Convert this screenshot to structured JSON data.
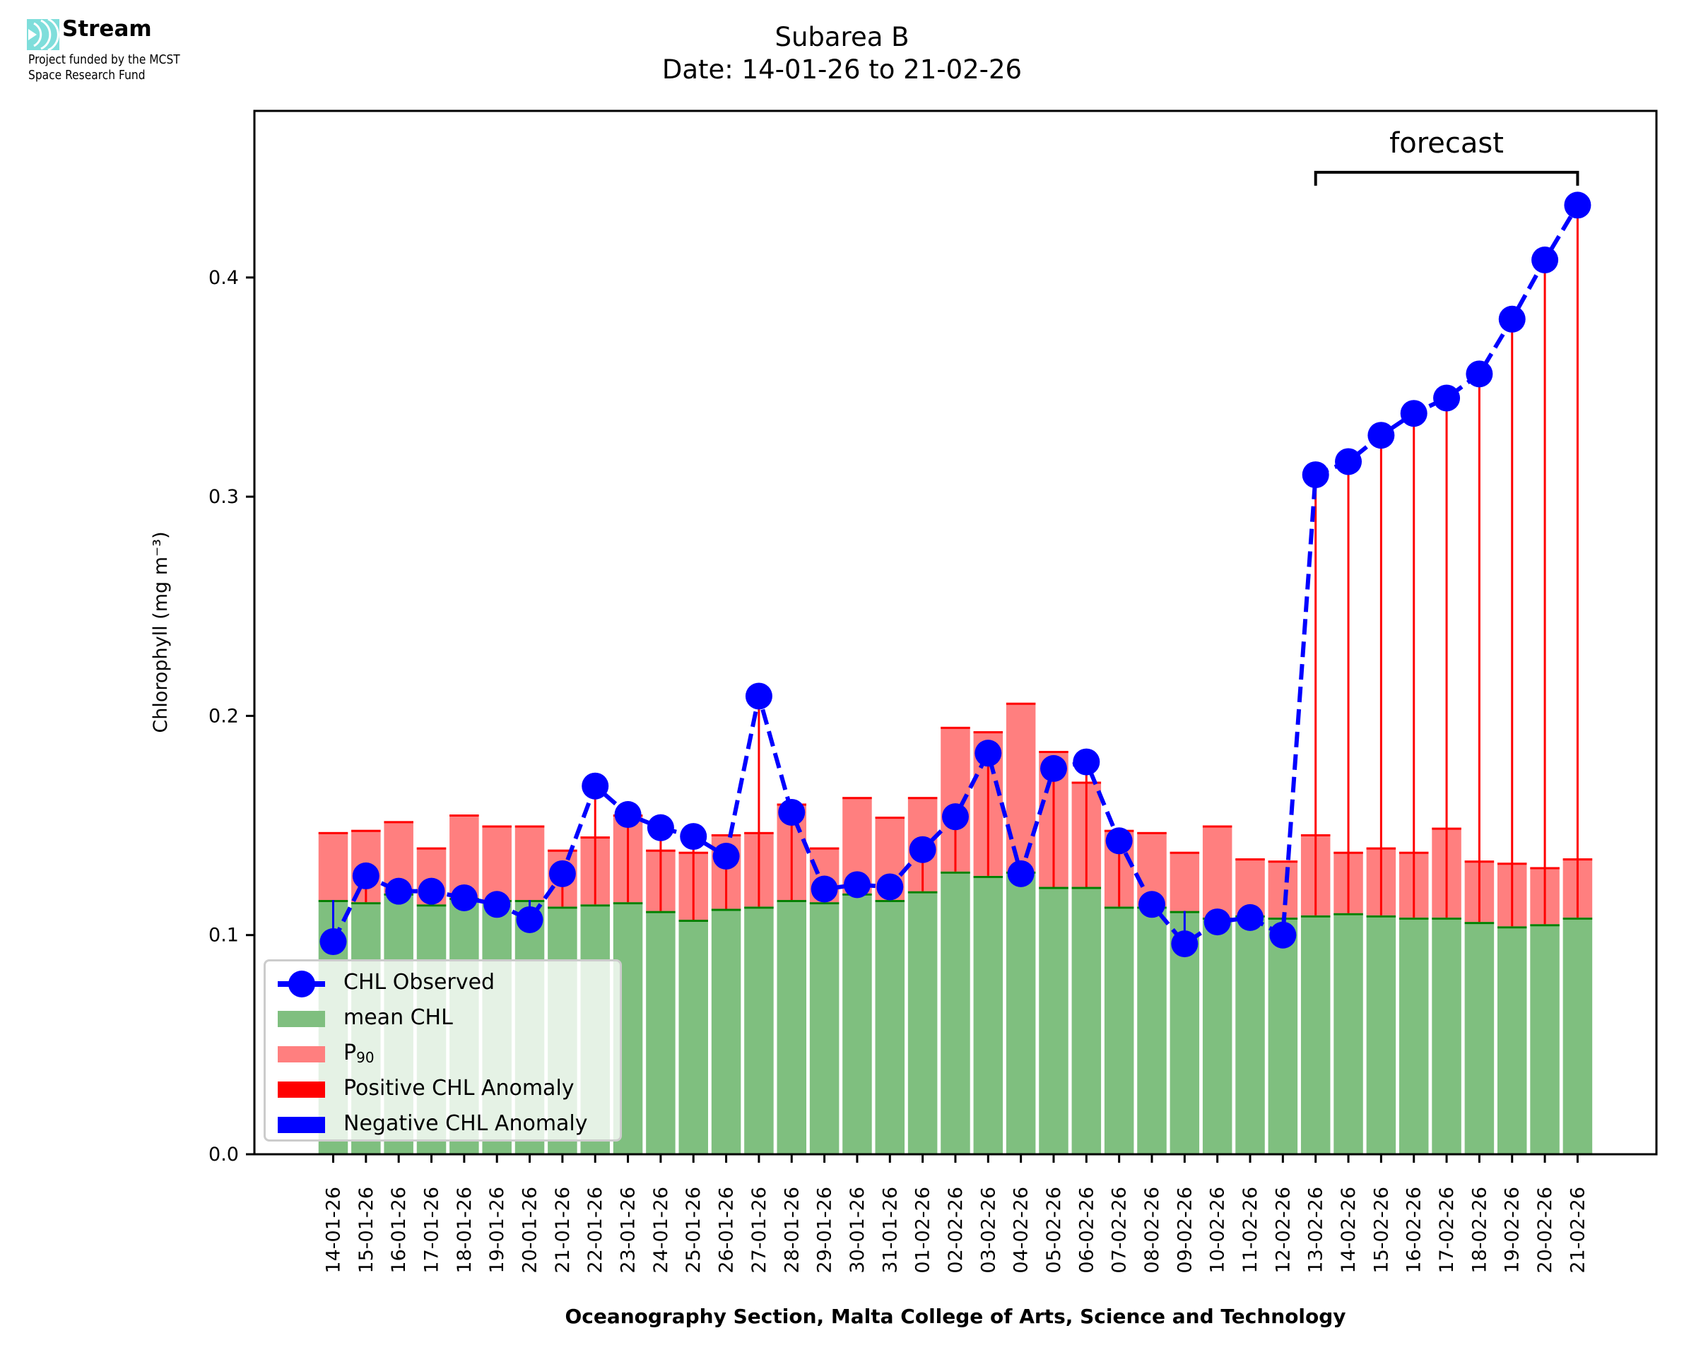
{
  "header": {
    "logo_icon": "stream-waves-icon",
    "logo_name": "Stream",
    "logo_subtitle_line1": "Project funded by the MCST",
    "logo_subtitle_line2": "Space Research Fund",
    "logo_color": "#7fdedb"
  },
  "chart_data": {
    "type": "bar",
    "title_line1": "Subarea B",
    "title_line2": "Date: 14-01-26 to 21-02-26",
    "xlabel": "Oceanography Section, Malta College of Arts, Science and Technology",
    "ylabel": "Chlorophyll (mg m⁻³)",
    "ylim": [
      0,
      0.476
    ],
    "yticks": [
      0.0,
      0.1,
      0.2,
      0.3,
      0.4
    ],
    "ytick_labels": [
      "0.0",
      "0.1",
      "0.2",
      "0.3",
      "0.4"
    ],
    "grid": false,
    "legend_placement": "lower-left",
    "categories": [
      "14-01-26",
      "15-01-26",
      "16-01-26",
      "17-01-26",
      "18-01-26",
      "19-01-26",
      "20-01-26",
      "21-01-26",
      "22-01-26",
      "23-01-26",
      "24-01-26",
      "25-01-26",
      "26-01-26",
      "27-01-26",
      "28-01-26",
      "29-01-26",
      "30-01-26",
      "31-01-26",
      "01-02-26",
      "02-02-26",
      "03-02-26",
      "04-02-26",
      "05-02-26",
      "06-02-26",
      "07-02-26",
      "08-02-26",
      "09-02-26",
      "10-02-26",
      "11-02-26",
      "12-02-26",
      "13-02-26",
      "14-02-26",
      "15-02-26",
      "16-02-26",
      "17-02-26",
      "18-02-26",
      "19-02-26",
      "20-02-26",
      "21-02-26"
    ],
    "series": [
      {
        "name": "mean CHL",
        "kind": "bar",
        "color": "#7fbf7f",
        "edge_color": "#008000",
        "values": [
          0.116,
          0.115,
          0.119,
          0.114,
          0.117,
          0.116,
          0.116,
          0.113,
          0.114,
          0.115,
          0.111,
          0.107,
          0.112,
          0.113,
          0.116,
          0.115,
          0.119,
          0.116,
          0.12,
          0.129,
          0.127,
          0.129,
          0.122,
          0.122,
          0.113,
          0.113,
          0.111,
          0.108,
          0.109,
          0.108,
          0.109,
          0.11,
          0.109,
          0.108,
          0.108,
          0.106,
          0.104,
          0.105,
          0.108
        ]
      },
      {
        "name": "P90",
        "kind": "bar",
        "color": "#ff7f7f",
        "edge_color": "#ff0000",
        "values": [
          0.147,
          0.148,
          0.152,
          0.14,
          0.155,
          0.15,
          0.15,
          0.139,
          0.145,
          0.155,
          0.139,
          0.138,
          0.146,
          0.147,
          0.16,
          0.14,
          0.163,
          0.154,
          0.163,
          0.195,
          0.193,
          0.206,
          0.184,
          0.17,
          0.148,
          0.147,
          0.138,
          0.15,
          0.135,
          0.134,
          0.146,
          0.138,
          0.14,
          0.138,
          0.149,
          0.134,
          0.133,
          0.131,
          0.135
        ]
      },
      {
        "name": "CHL Observed",
        "kind": "line",
        "color": "#0000ff",
        "linestyle": "dashed",
        "marker": "circle",
        "values": [
          0.097,
          0.127,
          0.12,
          0.12,
          0.117,
          0.114,
          0.107,
          0.128,
          0.168,
          0.155,
          0.149,
          0.145,
          0.136,
          0.209,
          0.156,
          0.121,
          0.123,
          0.122,
          0.139,
          0.154,
          0.183,
          0.128,
          0.176,
          0.179,
          0.143,
          0.114,
          0.096,
          0.106,
          0.108,
          0.1,
          0.31,
          0.316,
          0.328,
          0.338,
          0.345,
          0.356,
          0.381,
          0.408,
          0.433
        ]
      }
    ],
    "anomaly_legend": [
      {
        "name": "Positive CHL Anomaly",
        "color": "#ff0000"
      },
      {
        "name": "Negative CHL Anomaly",
        "color": "#0000ff"
      }
    ],
    "annotation": {
      "text": "forecast",
      "from_category": "13-02-26",
      "to_category": "21-02-26",
      "bracket_y": 0.448
    }
  },
  "legend": {
    "items": [
      {
        "label": "CHL Observed"
      },
      {
        "label": "mean CHL"
      },
      {
        "label_main": "P",
        "label_sub": "90"
      },
      {
        "label": "Positive CHL Anomaly"
      },
      {
        "label": "Negative CHL Anomaly"
      }
    ]
  }
}
